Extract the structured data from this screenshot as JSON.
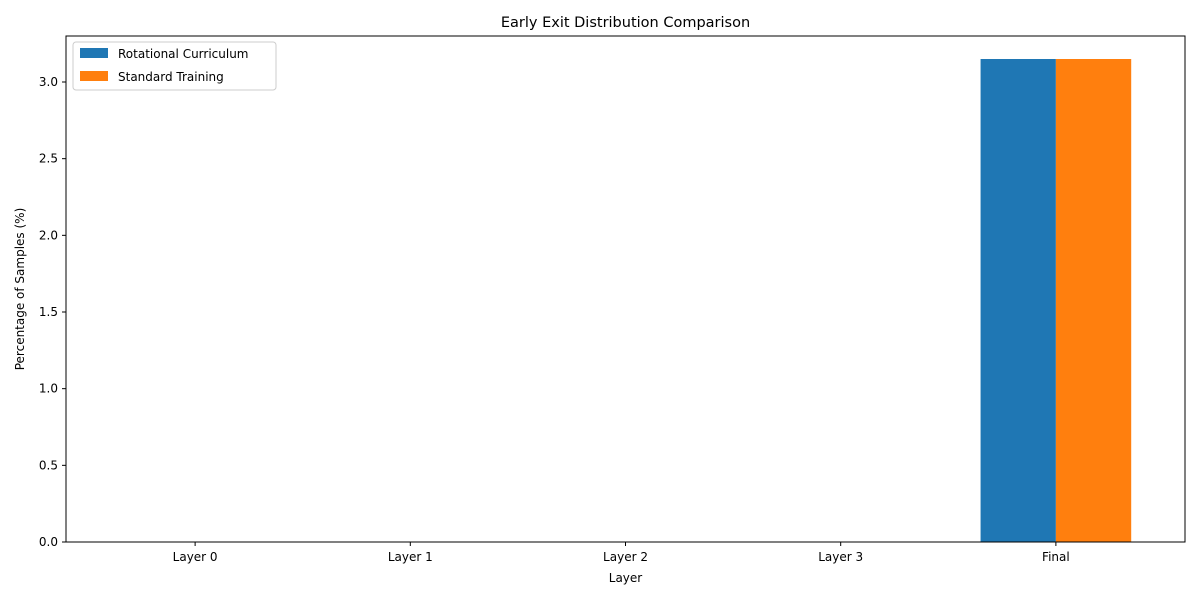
{
  "chart_data": {
    "type": "bar",
    "title": "Early Exit Distribution Comparison",
    "xlabel": "Layer",
    "ylabel": "Percentage of Samples (%)",
    "categories": [
      "Layer 0",
      "Layer 1",
      "Layer 2",
      "Layer 3",
      "Final"
    ],
    "series": [
      {
        "name": "Rotational Curriculum",
        "color": "#1f77b4",
        "values": [
          0,
          0,
          0,
          0,
          3.15
        ]
      },
      {
        "name": "Standard Training",
        "color": "#ff7f0e",
        "values": [
          0,
          0,
          0,
          0,
          3.15
        ]
      }
    ],
    "ylim": [
      0,
      3.3
    ],
    "yticks": [
      "0.0",
      "0.5",
      "1.0",
      "1.5",
      "2.0",
      "2.5",
      "3.0"
    ],
    "legend_position": "top-left",
    "grid": false
  }
}
